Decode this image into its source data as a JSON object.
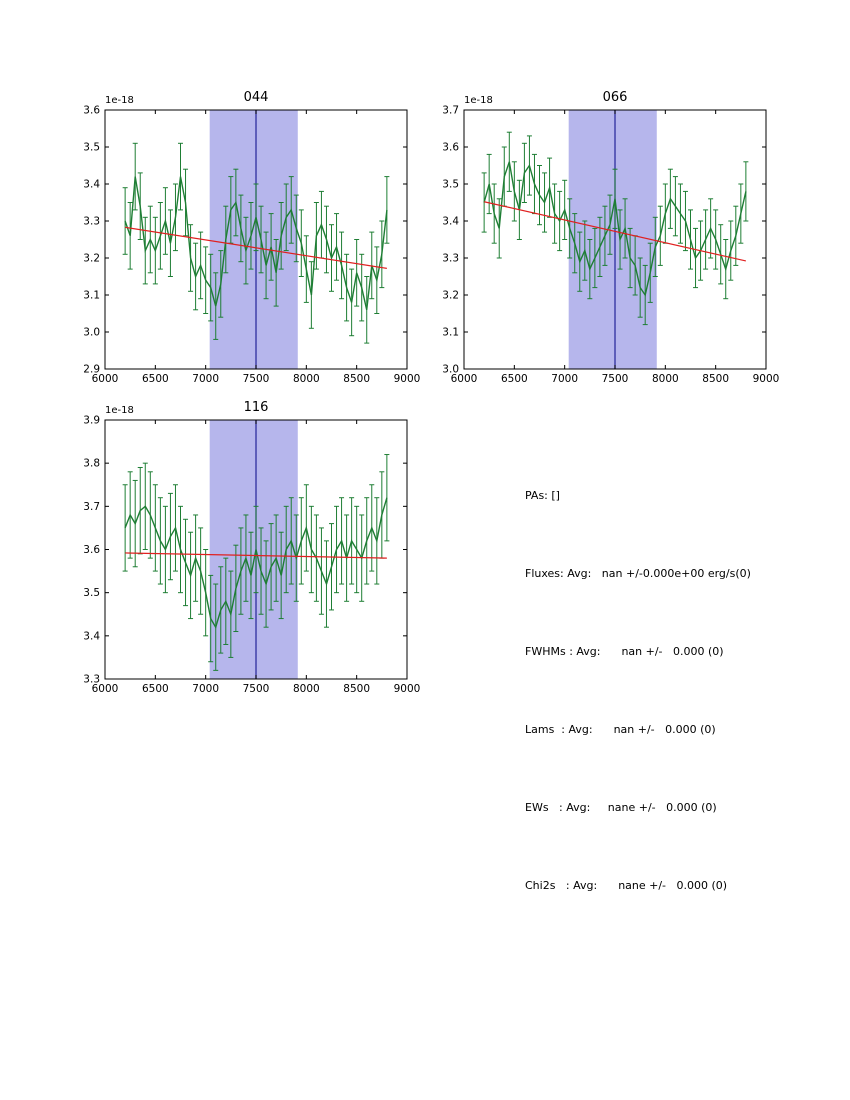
{
  "figure": {
    "background": "#ffffff"
  },
  "colors": {
    "data": "#1e7e34",
    "trend": "#e02020",
    "band": "#b6b6ec",
    "vline": "#2e2e9e",
    "axes": "#000000"
  },
  "stats": {
    "lines": [
      "PAs: []",
      "Fluxes: Avg:   nan +/-0.000e+00 erg/s(0)",
      "FWHMs : Avg:      nan +/-   0.000 (0)",
      "Lams  : Avg:      nan +/-   0.000 (0)",
      "EWs   : Avg:     nane +/-   0.000 (0)",
      "Chi2s   : Avg:      nane +/-   0.000 (0)"
    ]
  },
  "chart_data": [
    {
      "type": "line",
      "title": "044",
      "offset_label": "1e-18",
      "xlabel": "",
      "ylabel": "",
      "xlim": [
        6000,
        9000
      ],
      "ylim": [
        2.9,
        3.6
      ],
      "xticks": [
        6000,
        6500,
        7000,
        7500,
        8000,
        8500,
        9000
      ],
      "yticks": [
        2.9,
        3.0,
        3.1,
        3.2,
        3.3,
        3.4,
        3.5,
        3.6
      ],
      "grid": false,
      "band": [
        7040,
        7915
      ],
      "vline": 7500,
      "trend": {
        "x": [
          6200,
          8800
        ],
        "y": [
          3.283,
          3.172
        ]
      },
      "series": {
        "name": "spectrum-044",
        "x": [
          6200,
          6250,
          6300,
          6350,
          6400,
          6450,
          6500,
          6550,
          6600,
          6650,
          6700,
          6750,
          6800,
          6850,
          6900,
          6950,
          7000,
          7050,
          7100,
          7150,
          7200,
          7250,
          7300,
          7350,
          7400,
          7450,
          7500,
          7550,
          7600,
          7650,
          7700,
          7750,
          7800,
          7850,
          7900,
          7950,
          8000,
          8050,
          8100,
          8150,
          8200,
          8250,
          8300,
          8350,
          8400,
          8450,
          8500,
          8550,
          8600,
          8650,
          8700,
          8750,
          8800
        ],
        "y": [
          3.3,
          3.26,
          3.42,
          3.34,
          3.22,
          3.25,
          3.22,
          3.26,
          3.3,
          3.24,
          3.31,
          3.42,
          3.35,
          3.2,
          3.15,
          3.18,
          3.14,
          3.12,
          3.07,
          3.13,
          3.25,
          3.33,
          3.35,
          3.28,
          3.22,
          3.26,
          3.31,
          3.25,
          3.18,
          3.23,
          3.16,
          3.26,
          3.31,
          3.33,
          3.28,
          3.24,
          3.17,
          3.1,
          3.26,
          3.29,
          3.25,
          3.2,
          3.23,
          3.18,
          3.12,
          3.08,
          3.16,
          3.12,
          3.06,
          3.18,
          3.14,
          3.21,
          3.33
        ],
        "yerr": 0.09
      }
    },
    {
      "type": "line",
      "title": "066",
      "offset_label": "1e-18",
      "xlabel": "",
      "ylabel": "",
      "xlim": [
        6000,
        9000
      ],
      "ylim": [
        3.0,
        3.7
      ],
      "xticks": [
        6000,
        6500,
        7000,
        7500,
        8000,
        8500,
        9000
      ],
      "yticks": [
        3.0,
        3.1,
        3.2,
        3.3,
        3.4,
        3.5,
        3.6,
        3.7
      ],
      "grid": false,
      "band": [
        7040,
        7915
      ],
      "vline": 7500,
      "trend": {
        "x": [
          6200,
          8800
        ],
        "y": [
          3.452,
          3.292
        ]
      },
      "series": {
        "name": "spectrum-066",
        "x": [
          6200,
          6250,
          6300,
          6350,
          6400,
          6450,
          6500,
          6550,
          6600,
          6650,
          6700,
          6750,
          6800,
          6850,
          6900,
          6950,
          7000,
          7050,
          7100,
          7150,
          7200,
          7250,
          7300,
          7350,
          7400,
          7450,
          7500,
          7550,
          7600,
          7650,
          7700,
          7750,
          7800,
          7850,
          7900,
          7950,
          8000,
          8050,
          8100,
          8150,
          8200,
          8250,
          8300,
          8350,
          8400,
          8450,
          8500,
          8550,
          8600,
          8650,
          8700,
          8750,
          8800
        ],
        "y": [
          3.45,
          3.5,
          3.42,
          3.38,
          3.52,
          3.56,
          3.48,
          3.43,
          3.53,
          3.55,
          3.5,
          3.47,
          3.45,
          3.49,
          3.42,
          3.4,
          3.43,
          3.38,
          3.34,
          3.29,
          3.32,
          3.27,
          3.3,
          3.33,
          3.36,
          3.39,
          3.46,
          3.35,
          3.38,
          3.3,
          3.28,
          3.22,
          3.2,
          3.26,
          3.33,
          3.36,
          3.42,
          3.46,
          3.44,
          3.42,
          3.4,
          3.35,
          3.3,
          3.32,
          3.35,
          3.38,
          3.35,
          3.31,
          3.27,
          3.32,
          3.36,
          3.42,
          3.48
        ],
        "yerr": 0.08
      }
    },
    {
      "type": "line",
      "title": "116",
      "offset_label": "1e-18",
      "xlabel": "",
      "ylabel": "",
      "xlim": [
        6000,
        9000
      ],
      "ylim": [
        3.3,
        3.9
      ],
      "xticks": [
        6000,
        6500,
        7000,
        7500,
        8000,
        8500,
        9000
      ],
      "yticks": [
        3.3,
        3.4,
        3.5,
        3.6,
        3.7,
        3.8,
        3.9
      ],
      "grid": false,
      "band": [
        7040,
        7915
      ],
      "vline": 7500,
      "trend": {
        "x": [
          6200,
          8800
        ],
        "y": [
          3.592,
          3.58
        ]
      },
      "series": {
        "name": "spectrum-116",
        "x": [
          6200,
          6250,
          6300,
          6350,
          6400,
          6450,
          6500,
          6550,
          6600,
          6650,
          6700,
          6750,
          6800,
          6850,
          6900,
          6950,
          7000,
          7050,
          7100,
          7150,
          7200,
          7250,
          7300,
          7350,
          7400,
          7450,
          7500,
          7550,
          7600,
          7650,
          7700,
          7750,
          7800,
          7850,
          7900,
          7950,
          8000,
          8050,
          8100,
          8150,
          8200,
          8250,
          8300,
          8350,
          8400,
          8450,
          8500,
          8550,
          8600,
          8650,
          8700,
          8750,
          8800
        ],
        "y": [
          3.65,
          3.68,
          3.66,
          3.69,
          3.7,
          3.68,
          3.65,
          3.62,
          3.6,
          3.63,
          3.65,
          3.6,
          3.57,
          3.54,
          3.58,
          3.55,
          3.5,
          3.44,
          3.42,
          3.46,
          3.48,
          3.45,
          3.51,
          3.55,
          3.58,
          3.54,
          3.6,
          3.55,
          3.52,
          3.56,
          3.58,
          3.54,
          3.6,
          3.62,
          3.58,
          3.62,
          3.65,
          3.6,
          3.58,
          3.55,
          3.52,
          3.56,
          3.6,
          3.62,
          3.58,
          3.62,
          3.6,
          3.58,
          3.62,
          3.65,
          3.62,
          3.68,
          3.72
        ],
        "yerr": 0.1
      }
    }
  ]
}
